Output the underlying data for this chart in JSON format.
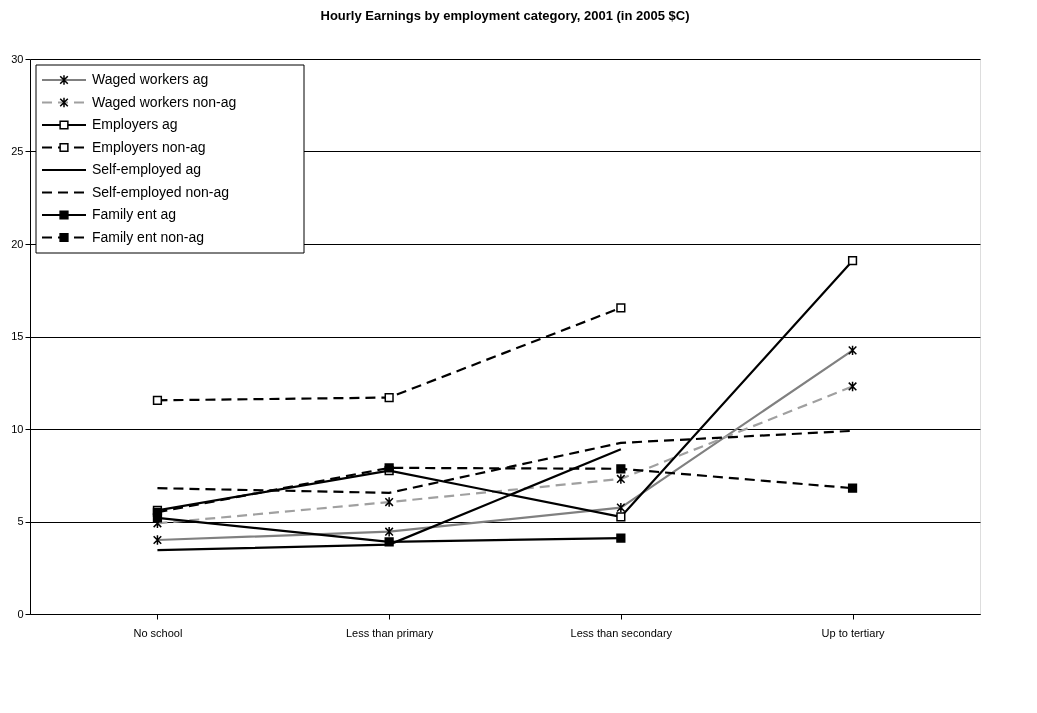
{
  "chart_data": {
    "type": "line",
    "title": "Hourly Earnings by employment category, 2001 (in 2005 $C)",
    "categories": [
      "No school",
      "Less than primary",
      "Less than secondary",
      "Up to tertiary"
    ],
    "ylim": [
      0,
      30
    ],
    "yticks": [
      0,
      5,
      10,
      15,
      20,
      25,
      30
    ],
    "grid": "y",
    "legend": "top left",
    "series": [
      {
        "name": "Waged workers ag",
        "color": "#808080",
        "line_style": "solid",
        "marker": "cross",
        "values": [
          4.0,
          4.45,
          5.75,
          14.25
        ]
      },
      {
        "name": "Waged workers non-ag",
        "color": "#a0a0a0",
        "line_style": "dashed",
        "marker": "cross",
        "values": [
          4.9,
          6.05,
          7.3,
          12.3
        ]
      },
      {
        "name": "Employers ag",
        "color": "#000000",
        "line_style": "solid",
        "marker": "square",
        "colors": [
          "#ffffff",
          "#ffffff",
          "#ffffff",
          "#ffffff"
        ],
        "values": [
          5.6,
          7.75,
          5.25,
          19.1
        ]
      },
      {
        "name": "Employers non-ag",
        "color": "#000000",
        "line_style": "dashed",
        "marker": "square",
        "colors": [
          "#ffffff",
          "#ffffff",
          "#ffffff",
          "#ffffff"
        ],
        "values": [
          11.55,
          11.7,
          16.55,
          null
        ]
      },
      {
        "name": "Self-employed ag",
        "color": "#000000",
        "line_style": "solid",
        "marker": "none",
        "values": [
          3.45,
          3.75,
          8.9,
          null
        ]
      },
      {
        "name": "Self-employed non-ag",
        "color": "#000000",
        "line_style": "dashed",
        "marker": "none",
        "values": [
          6.8,
          6.55,
          9.25,
          9.9
        ]
      },
      {
        "name": "Family ent ag",
        "color": "#000000",
        "line_style": "solid",
        "marker": "square",
        "colors": [
          "#000000",
          "#000000",
          "#000000",
          "#000000"
        ],
        "values": [
          5.2,
          3.9,
          4.1,
          null
        ]
      },
      {
        "name": "Family ent non-ag",
        "color": "#000000",
        "line_style": "dashed",
        "marker": "square",
        "colors": [
          "#000000",
          "#000000",
          "#000000",
          "#000000"
        ],
        "values": [
          5.5,
          7.9,
          7.85,
          6.8
        ]
      }
    ]
  }
}
